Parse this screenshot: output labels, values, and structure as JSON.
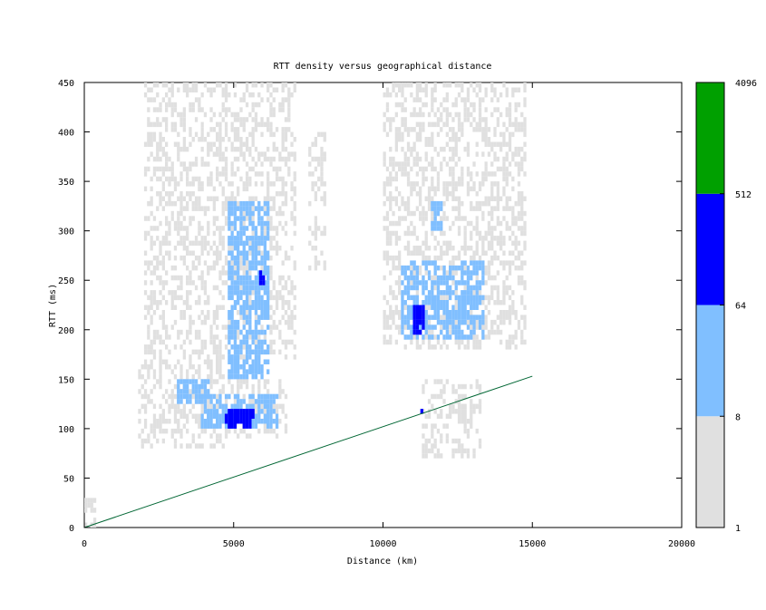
{
  "chart_data": {
    "type": "heatmap",
    "title": "RTT density versus geographical distance",
    "xlabel": "Distance (km)",
    "ylabel": "RTT (ms)",
    "xlim": [
      0,
      20000
    ],
    "ylim": [
      0,
      450
    ],
    "xticks": [
      0,
      5000,
      10000,
      15000,
      20000
    ],
    "yticks": [
      0,
      50,
      100,
      150,
      200,
      250,
      300,
      350,
      400,
      450
    ],
    "grid": false,
    "colorbar": {
      "scale": "log",
      "range": [
        1,
        4096
      ],
      "tick_labels": [
        "1",
        "8",
        "64",
        "512",
        "4096"
      ],
      "bands": [
        {
          "from": 1,
          "to": 8,
          "color": "#e0e0e0"
        },
        {
          "from": 8,
          "to": 64,
          "color": "#80bfff"
        },
        {
          "from": 64,
          "to": 512,
          "color": "#0000ff"
        },
        {
          "from": 512,
          "to": 4096,
          "color": "#00a000"
        }
      ]
    },
    "reference_line": {
      "color": "#006633",
      "points": [
        [
          0,
          0
        ],
        [
          15000,
          153
        ]
      ]
    },
    "density_regions": [
      {
        "level": "low",
        "x": [
          0,
          400
        ],
        "y": [
          0,
          30
        ]
      },
      {
        "level": "low",
        "x": [
          1800,
          4700
        ],
        "y": [
          80,
          170
        ]
      },
      {
        "level": "low",
        "x": [
          2000,
          7100
        ],
        "y": [
          170,
          450
        ]
      },
      {
        "level": "low",
        "x": [
          4700,
          6800
        ],
        "y": [
          90,
          150
        ]
      },
      {
        "level": "low",
        "x": [
          7500,
          8100
        ],
        "y": [
          260,
          400
        ]
      },
      {
        "level": "low",
        "x": [
          10000,
          14800
        ],
        "y": [
          180,
          450
        ]
      },
      {
        "level": "low",
        "x": [
          11300,
          13300
        ],
        "y": [
          70,
          150
        ]
      },
      {
        "level": "mid",
        "x": [
          3100,
          4200
        ],
        "y": [
          125,
          150
        ]
      },
      {
        "level": "mid",
        "x": [
          3900,
          6500
        ],
        "y": [
          100,
          135
        ]
      },
      {
        "level": "mid",
        "x": [
          4800,
          6200
        ],
        "y": [
          150,
          330
        ]
      },
      {
        "level": "mid",
        "x": [
          10600,
          13400
        ],
        "y": [
          190,
          270
        ]
      },
      {
        "level": "mid",
        "x": [
          11600,
          12000
        ],
        "y": [
          300,
          330
        ]
      },
      {
        "level": "high",
        "x": [
          4700,
          5700
        ],
        "y": [
          100,
          120
        ]
      },
      {
        "level": "high",
        "x": [
          5850,
          6000
        ],
        "y": [
          240,
          260
        ]
      },
      {
        "level": "high",
        "x": [
          11000,
          11400
        ],
        "y": [
          195,
          225
        ]
      },
      {
        "level": "high",
        "x": [
          11250,
          11350
        ],
        "y": [
          115,
          120
        ]
      }
    ]
  }
}
